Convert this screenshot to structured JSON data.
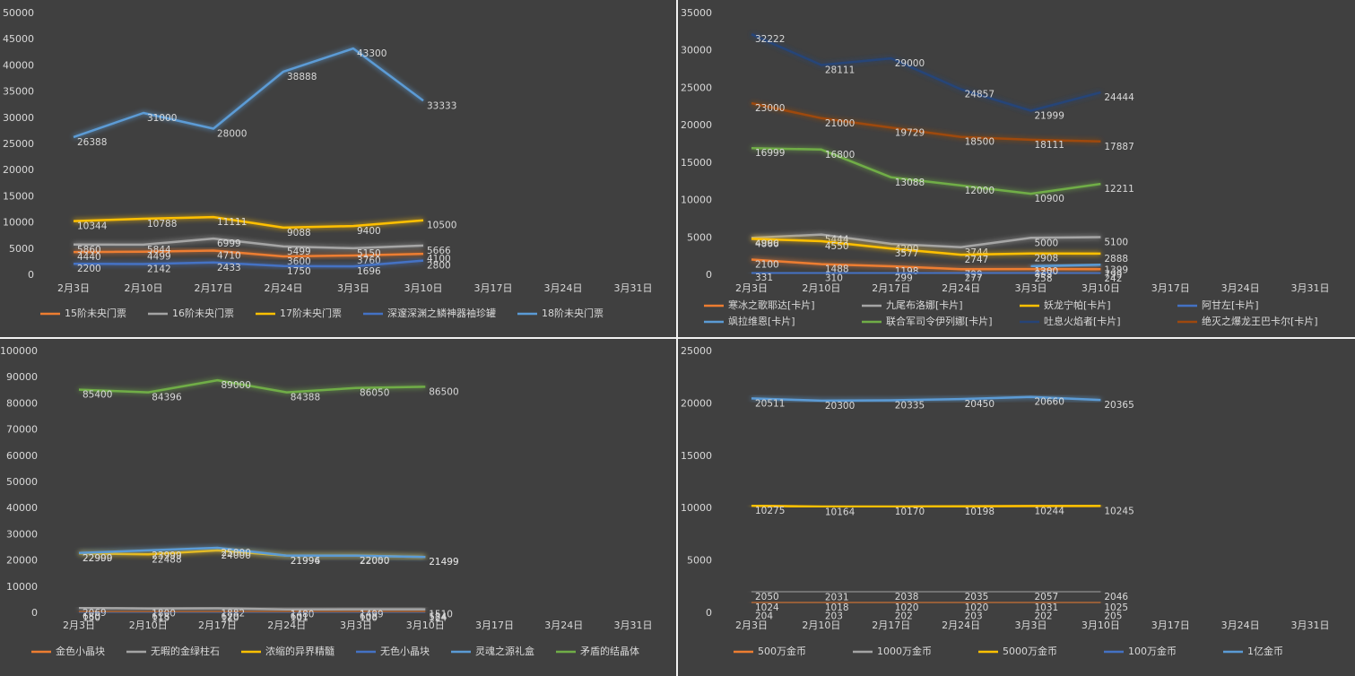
{
  "chart_data": [
    {
      "type": "line",
      "categories": [
        "2月3日",
        "2月10日",
        "2月17日",
        "2月24日",
        "3月3日",
        "3月10日",
        "3月17日",
        "3月24日",
        "3月31日"
      ],
      "ylim": [
        0,
        50000
      ],
      "yticks": [
        0,
        5000,
        10000,
        15000,
        20000,
        25000,
        30000,
        35000,
        40000,
        45000,
        50000
      ],
      "grid": false,
      "legend": "bottom",
      "series": [
        {
          "name": "15阶未央门票",
          "color": "#ed7d31",
          "values": [
            4440,
            4499,
            4710,
            3600,
            3760,
            4100,
            null,
            null,
            null
          ]
        },
        {
          "name": "16阶未央门票",
          "color": "#a5a5a5",
          "values": [
            5860,
            5844,
            6999,
            5499,
            5150,
            5666,
            null,
            null,
            null
          ]
        },
        {
          "name": "17阶未央门票",
          "color": "#ffc000",
          "values": [
            10344,
            10788,
            11111,
            9088,
            9400,
            10500,
            null,
            null,
            null
          ]
        },
        {
          "name": "深邃深渊之鳞神器袖珍罐",
          "color": "#4472c4",
          "values": [
            2200,
            2142,
            2433,
            1750,
            1696,
            2800,
            null,
            null,
            null
          ]
        },
        {
          "name": "18阶未央门票",
          "color": "#5b9bd5",
          "values": [
            26388,
            31000,
            28000,
            38888,
            43300,
            33333,
            null,
            null,
            null
          ]
        }
      ]
    },
    {
      "type": "line",
      "categories": [
        "2月3日",
        "2月10日",
        "2月17日",
        "2月24日",
        "3月3日",
        "3月10日",
        "3月17日",
        "3月24日",
        "3月31日"
      ],
      "ylim": [
        0,
        35000
      ],
      "yticks": [
        0,
        5000,
        10000,
        15000,
        20000,
        25000,
        30000,
        35000
      ],
      "grid": false,
      "legend": "bottom",
      "series": [
        {
          "name": "寒冰之歌耶达[卡片]",
          "color": "#ed7d31",
          "values": [
            2100,
            1488,
            1198,
            799,
            833,
            799,
            null,
            null,
            null
          ]
        },
        {
          "name": "九尾布洛娜[卡片]",
          "color": "#a5a5a5",
          "values": [
            4990,
            5444,
            4200,
            3744,
            5000,
            5100,
            null,
            null,
            null
          ]
        },
        {
          "name": "妖龙宁帕[卡片]",
          "color": "#ffc000",
          "values": [
            4866,
            4550,
            3577,
            2747,
            2908,
            2888,
            null,
            null,
            null
          ]
        },
        {
          "name": "阿甘左[卡片]",
          "color": "#4472c4",
          "values": [
            331,
            310,
            299,
            277,
            258,
            242,
            null,
            null,
            null
          ]
        },
        {
          "name": "飒拉维恩[卡片]",
          "color": "#5b9bd5",
          "values": [
            null,
            null,
            null,
            null,
            1200,
            1399,
            null,
            null,
            null
          ]
        },
        {
          "name": "联合军司令伊列娜[卡片]",
          "color": "#70ad47",
          "values": [
            16999,
            16800,
            13088,
            12000,
            10900,
            12211,
            null,
            null,
            null
          ]
        },
        {
          "name": "吐息火焰者[卡片]",
          "color": "#264478",
          "values": [
            32222,
            28111,
            29000,
            24857,
            21999,
            24444,
            null,
            null,
            null
          ]
        },
        {
          "name": "绝灭之爆龙王巴卡尔[卡片]",
          "color": "#9e480e",
          "values": [
            23000,
            21000,
            19729,
            18500,
            18111,
            17887,
            null,
            null,
            null
          ]
        }
      ]
    },
    {
      "type": "line",
      "categories": [
        "2月3日",
        "2月10日",
        "2月17日",
        "2月24日",
        "3月3日",
        "3月10日",
        "3月17日",
        "3月24日",
        "3月31日"
      ],
      "ylim": [
        0,
        100000
      ],
      "yticks": [
        0,
        10000,
        20000,
        30000,
        40000,
        50000,
        60000,
        70000,
        80000,
        90000,
        100000
      ],
      "grid": false,
      "legend": "bottom",
      "series": [
        {
          "name": "金色小晶块",
          "color": "#ed7d31",
          "values": [
            680,
            618,
            620,
            601,
            608,
            584,
            null,
            null,
            null
          ]
        },
        {
          "name": "无暇的金绿柱石",
          "color": "#a5a5a5",
          "values": [
            2069,
            1800,
            1882,
            1480,
            1499,
            1510,
            null,
            null,
            null
          ]
        },
        {
          "name": "浓缩的异界精髓",
          "color": "#ffc000",
          "values": [
            22900,
            22488,
            24000,
            21994,
            22050,
            21499,
            null,
            null,
            null
          ]
        },
        {
          "name": "无色小晶块",
          "color": "#4472c4",
          "values": [
            150,
            115,
            120,
            101,
            100,
            124,
            null,
            null,
            null
          ]
        },
        {
          "name": "灵魂之源礼盒",
          "color": "#5b9bd5",
          "values": [
            22999,
            23999,
            25000,
            21996,
            22000,
            21499,
            null,
            null,
            null
          ]
        },
        {
          "name": "矛盾的结晶体",
          "color": "#70ad47",
          "values": [
            85400,
            84396,
            89000,
            84388,
            86050,
            86500,
            null,
            null,
            null
          ]
        }
      ]
    },
    {
      "type": "line",
      "categories": [
        "2月3日",
        "2月10日",
        "2月17日",
        "2月24日",
        "3月3日",
        "3月10日",
        "3月17日",
        "3月24日",
        "3月31日"
      ],
      "ylim": [
        0,
        25000
      ],
      "yticks": [
        0,
        5000,
        10000,
        15000,
        20000,
        25000
      ],
      "grid": false,
      "legend": "bottom",
      "series": [
        {
          "name": "500万金币",
          "color": "#ed7d31",
          "values": [
            1024,
            1018,
            1020,
            1020,
            1031,
            1025,
            null,
            null,
            null
          ]
        },
        {
          "name": "1000万金币",
          "color": "#a5a5a5",
          "values": [
            2050,
            2031,
            2038,
            2035,
            2057,
            2046,
            null,
            null,
            null
          ]
        },
        {
          "name": "5000万金币",
          "color": "#ffc000",
          "values": [
            10275,
            10164,
            10170,
            10198,
            10244,
            10245,
            null,
            null,
            null
          ]
        },
        {
          "name": "100万金币",
          "color": "#4472c4",
          "values": [
            204,
            203,
            202,
            203,
            202,
            205,
            null,
            null,
            null
          ]
        },
        {
          "name": "1亿金币",
          "color": "#5b9bd5",
          "values": [
            20511,
            20300,
            20335,
            20450,
            20660,
            20365,
            null,
            null,
            null
          ]
        }
      ]
    }
  ]
}
